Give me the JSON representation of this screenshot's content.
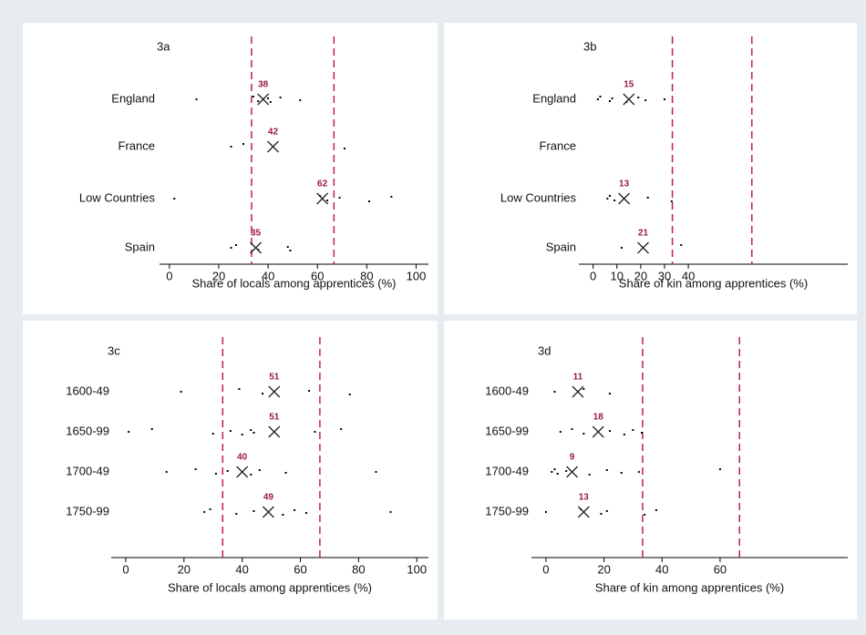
{
  "chart_data": [
    {
      "type": "dot",
      "title": "3a",
      "xlabel": "Share of locals among apprentices (%)",
      "categories": [
        "England",
        "France",
        "Low Countries",
        "Spain"
      ],
      "points": [
        [
          11,
          34,
          36,
          40,
          41,
          45,
          53
        ],
        [
          25,
          30,
          71
        ],
        [
          2,
          61,
          64,
          69,
          81,
          90
        ],
        [
          25,
          27,
          36,
          48,
          49
        ]
      ],
      "means": [
        38,
        42,
        62,
        35
      ],
      "xlim": [
        -4,
        105
      ],
      "xticks": [
        0,
        20,
        40,
        60,
        80,
        100
      ],
      "ref_lines": [
        33.3,
        66.7
      ],
      "point_color": "#000000",
      "mean_color": "#222222",
      "label_color": "#9b1b3c",
      "ref_color": "#c41e4a"
    },
    {
      "type": "dot",
      "title": "3b",
      "xlabel": "Share of kin among apprentices (%)",
      "categories": [
        "England",
        "France",
        "Low Countries",
        "Spain"
      ],
      "points": [
        [
          2,
          3,
          7,
          8,
          14,
          19,
          22,
          30
        ],
        [],
        [
          6,
          7,
          9,
          23,
          33
        ],
        [
          12,
          37
        ]
      ],
      "means": [
        15,
        null,
        13,
        21
      ],
      "xlim": [
        -6,
        107
      ],
      "xticks": [
        0,
        10,
        20,
        30,
        40
      ],
      "ref_lines": [
        33.3,
        66.7
      ],
      "point_color": "#000000",
      "mean_color": "#222222",
      "label_color": "#9b1b3c",
      "ref_color": "#c41e4a"
    },
    {
      "type": "dot",
      "title": "3c",
      "xlabel": "Share of locals among apprentices (%)",
      "categories": [
        "1600-49",
        "1650-99",
        "1700-49",
        "1750-99"
      ],
      "points": [
        [
          19,
          39,
          47,
          63,
          77
        ],
        [
          1,
          9,
          30,
          36,
          40,
          43,
          44,
          65,
          74
        ],
        [
          14,
          24,
          31,
          35,
          43,
          46,
          55,
          86
        ],
        [
          27,
          29,
          38,
          44,
          54,
          58,
          62,
          91
        ]
      ],
      "means": [
        51,
        51,
        40,
        49
      ],
      "xlim": [
        -5,
        104
      ],
      "xticks": [
        0,
        20,
        40,
        60,
        80,
        100
      ],
      "ref_lines": [
        33.3,
        66.7
      ],
      "point_color": "#000000",
      "mean_color": "#222222",
      "label_color": "#9b1b3c",
      "ref_color": "#c41e4a"
    },
    {
      "type": "dot",
      "title": "3d",
      "xlabel": "Share of kin among apprentices (%)",
      "categories": [
        "1600-49",
        "1650-99",
        "1700-49",
        "1750-99"
      ],
      "points": [
        [
          3,
          13,
          22
        ],
        [
          5,
          9,
          13,
          22,
          27,
          30,
          33
        ],
        [
          2,
          3,
          4,
          7,
          15,
          21,
          26,
          32,
          60
        ],
        [
          0,
          12,
          19,
          21,
          34,
          38
        ]
      ],
      "means": [
        11,
        18,
        9,
        13
      ],
      "xlim": [
        -5,
        104
      ],
      "xticks": [
        0,
        20,
        40,
        60
      ],
      "ref_lines": [
        33.3,
        66.7
      ],
      "point_color": "#000000",
      "mean_color": "#222222",
      "label_color": "#9b1b3c",
      "ref_color": "#c41e4a"
    }
  ]
}
